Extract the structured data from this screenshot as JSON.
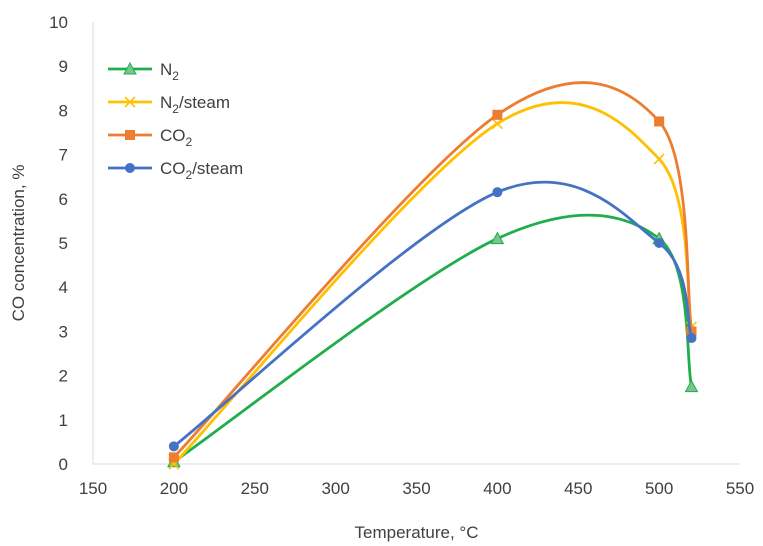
{
  "chart_data": {
    "type": "line",
    "title": "",
    "xlabel": "Temperature, °C",
    "ylabel": "CO concentration, %",
    "xlim": [
      150,
      550
    ],
    "ylim": [
      0,
      10
    ],
    "xticks": [
      "150",
      "200",
      "250",
      "300",
      "350",
      "400",
      "450",
      "500",
      "550"
    ],
    "yticks": [
      "0",
      "1",
      "2",
      "3",
      "4",
      "5",
      "6",
      "7",
      "8",
      "9",
      "10"
    ],
    "grid": false,
    "legend_position": "top-left",
    "series": [
      {
        "name_main": "N",
        "name_sub": "2",
        "name_rest": "",
        "color": "#1fae4b",
        "marker": "triangle",
        "x": [
          200,
          400,
          500,
          520
        ],
        "y": [
          0.05,
          5.1,
          5.1,
          1.75
        ]
      },
      {
        "name_main": "N",
        "name_sub": "2",
        "name_rest": "/steam",
        "color": "#ffc000",
        "marker": "x",
        "x": [
          200,
          400,
          500,
          520
        ],
        "y": [
          0.0,
          7.7,
          6.9,
          3.1
        ]
      },
      {
        "name_main": "CO",
        "name_sub": "2",
        "name_rest": "",
        "color": "#ed7d31",
        "marker": "square",
        "x": [
          200,
          400,
          500,
          520
        ],
        "y": [
          0.15,
          7.9,
          7.75,
          3.0
        ]
      },
      {
        "name_main": "CO",
        "name_sub": "2",
        "name_rest": "/steam",
        "color": "#4472c4",
        "marker": "circle",
        "x": [
          200,
          400,
          500,
          520
        ],
        "y": [
          0.4,
          6.15,
          5.0,
          2.85
        ]
      }
    ]
  }
}
